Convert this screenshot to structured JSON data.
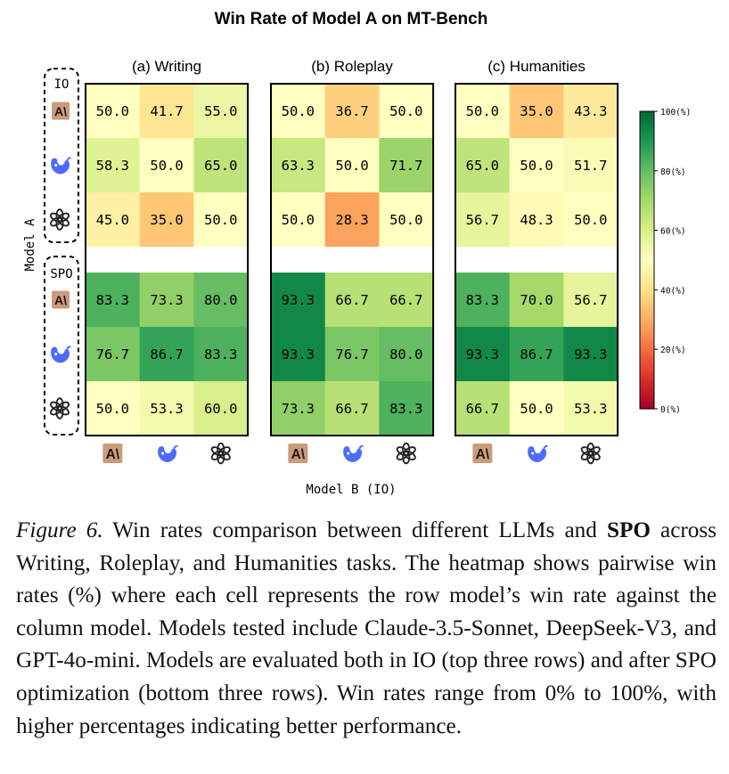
{
  "chart_data": {
    "type": "heatmap",
    "title": "Win Rate of Model A on MT-Bench",
    "xlabel": "Model B (IO)",
    "ylabel": "Model A",
    "row_groups": [
      "IO",
      "SPO"
    ],
    "models": [
      {
        "name": "Claude-3.5-Sonnet",
        "glyph": "A\\",
        "icon": "anthropic-logo-icon"
      },
      {
        "name": "DeepSeek-V3",
        "glyph": "",
        "icon": "deepseek-whale-icon"
      },
      {
        "name": "GPT-4o-mini",
        "glyph": "",
        "icon": "openai-knot-icon"
      }
    ],
    "colorbar": {
      "range": [
        0,
        100
      ],
      "ticks": [
        "100(%)",
        "80(%)",
        "60(%)",
        "40(%)",
        "20(%)",
        "0(%)"
      ],
      "tick_values": [
        100,
        80,
        60,
        40,
        20,
        0
      ],
      "colormap": "RdYlGn"
    },
    "panels": [
      {
        "title": "(a) Writing",
        "rows": [
          [
            50.0,
            41.7,
            55.0
          ],
          [
            58.3,
            50.0,
            65.0
          ],
          [
            45.0,
            35.0,
            50.0
          ],
          [
            83.3,
            73.3,
            80.0
          ],
          [
            76.7,
            86.7,
            83.3
          ],
          [
            50.0,
            53.3,
            60.0
          ]
        ]
      },
      {
        "title": "(b) Roleplay",
        "rows": [
          [
            50.0,
            36.7,
            50.0
          ],
          [
            63.3,
            50.0,
            71.7
          ],
          [
            50.0,
            28.3,
            50.0
          ],
          [
            93.3,
            66.7,
            66.7
          ],
          [
            93.3,
            76.7,
            80.0
          ],
          [
            73.3,
            66.7,
            83.3
          ]
        ]
      },
      {
        "title": "(c) Humanities",
        "rows": [
          [
            50.0,
            35.0,
            43.3
          ],
          [
            65.0,
            50.0,
            51.7
          ],
          [
            56.7,
            48.3,
            50.0
          ],
          [
            83.3,
            70.0,
            56.7
          ],
          [
            93.3,
            86.7,
            93.3
          ],
          [
            66.7,
            50.0,
            53.3
          ]
        ]
      }
    ]
  },
  "caption": {
    "label": "Figure 6.",
    "text_before_bold": " Win rates comparison between different LLMs and ",
    "bold": "SPO",
    "text_after_bold": " across Writing, Roleplay, and Humanities tasks.  The heatmap shows pairwise win rates (%) where each cell represents the row model’s win rate against the column model. Models tested include Claude-3.5-Sonnet, DeepSeek-V3, and GPT-4o-mini. Models are evaluated both in IO (top three rows) and after SPO optimization (bottom three rows).  Win rates range from 0% to 100%, with higher percentages indicating better performance."
  }
}
